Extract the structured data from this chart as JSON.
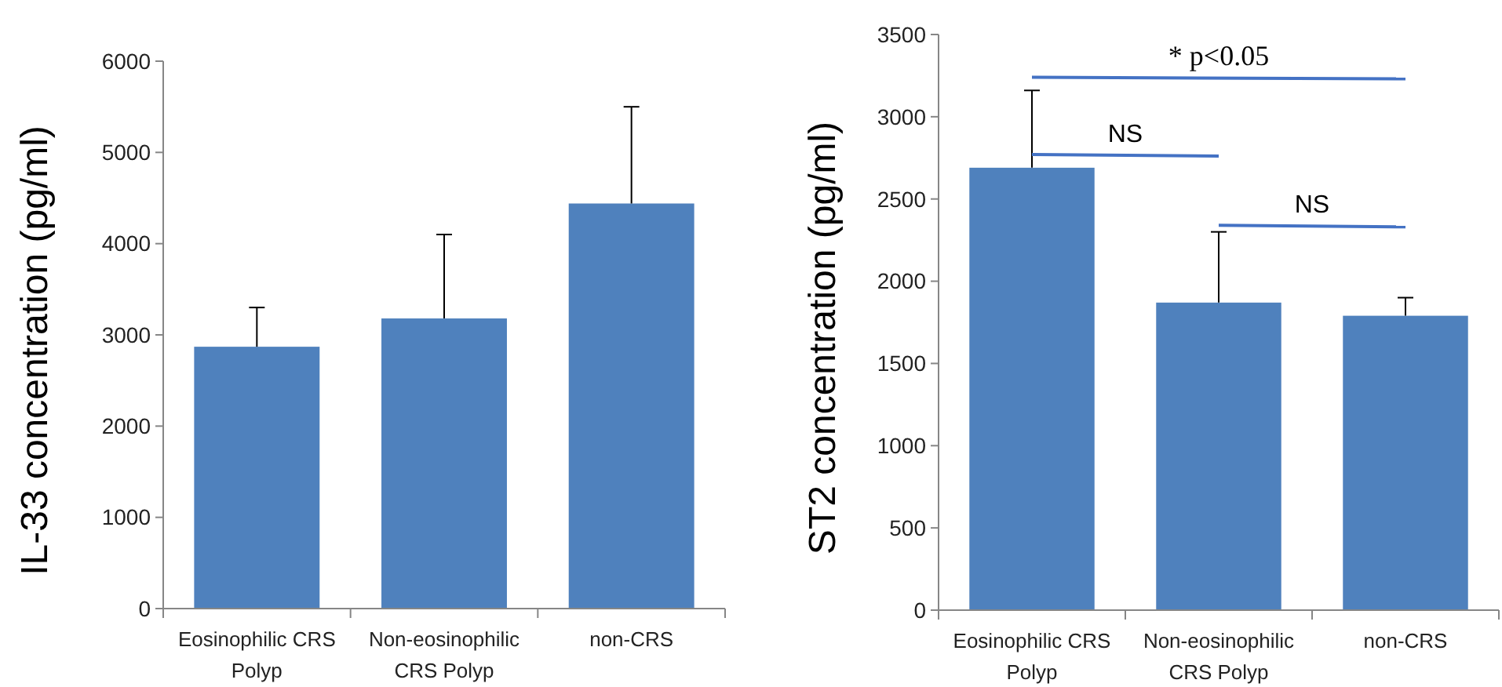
{
  "chart_data": [
    {
      "type": "bar",
      "ylabel": "IL-33 concentration (pg/ml)",
      "categories": [
        "Eosinophilic CRS Polyp",
        "Non-eosinophilic CRS Polyp",
        "non-CRS"
      ],
      "values": [
        2870,
        3180,
        4440
      ],
      "errors": [
        [
          2870,
          3300
        ],
        [
          3180,
          4100
        ],
        [
          4440,
          5500
        ]
      ],
      "color": "#4f81bd",
      "ylim": [
        0,
        6000
      ],
      "yticks": [
        0,
        1000,
        2000,
        3000,
        4000,
        5000,
        6000
      ],
      "grid": false
    },
    {
      "type": "bar",
      "ylabel": "ST2  concentration (pg/ml)",
      "categories": [
        "Eosinophilic CRS Polyp",
        "Non-eosinophilic CRS Polyp",
        "non-CRS"
      ],
      "values": [
        2690,
        1870,
        1790
      ],
      "errors": [
        [
          2690,
          3160
        ],
        [
          1870,
          2300
        ],
        [
          1790,
          1900
        ]
      ],
      "color": "#4f81bd",
      "ylim": [
        0,
        3500
      ],
      "yticks": [
        0,
        500,
        1000,
        1500,
        2000,
        2500,
        3000,
        3500
      ],
      "grid": false,
      "annotations": [
        "* p<0.05",
        "NS",
        "NS"
      ]
    }
  ]
}
